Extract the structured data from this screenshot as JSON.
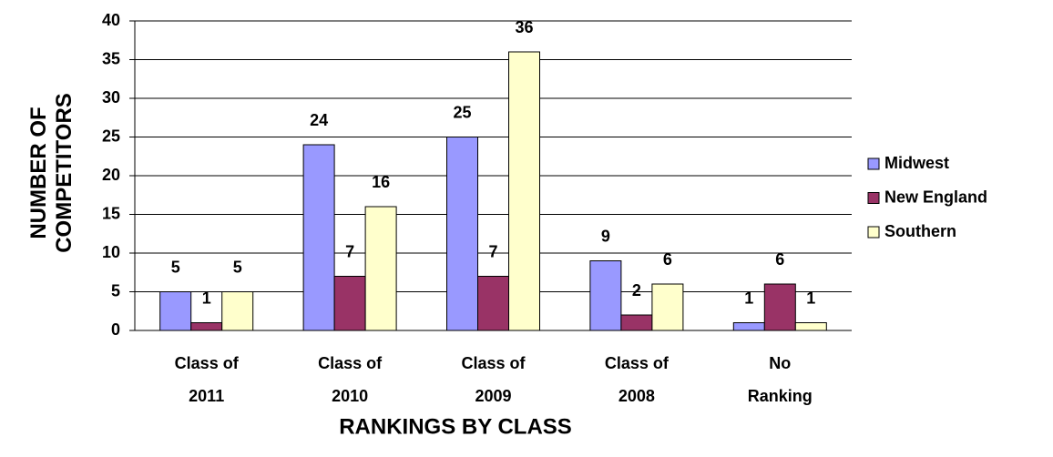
{
  "chart_data": {
    "type": "bar",
    "x_label": "RANKINGS BY CLASS",
    "y_label": "NUMBER OF COMPETITORS",
    "categories": [
      "Class of 2011",
      "Class of 2010",
      "Class of 2009",
      "Class of 2008",
      "No Ranking"
    ],
    "series": [
      {
        "name": "Midwest",
        "color": "#9999ff",
        "values": [
          5,
          24,
          25,
          9,
          1
        ]
      },
      {
        "name": "New England",
        "color": "#993366",
        "values": [
          1,
          7,
          7,
          2,
          6
        ]
      },
      {
        "name": "Southern",
        "color": "#ffffcc",
        "values": [
          5,
          16,
          36,
          6,
          1
        ]
      }
    ],
    "ylim": [
      0,
      40
    ],
    "yticks": [
      0,
      5,
      10,
      15,
      20,
      25,
      30,
      35,
      40
    ],
    "grid": true,
    "legend": "right"
  }
}
